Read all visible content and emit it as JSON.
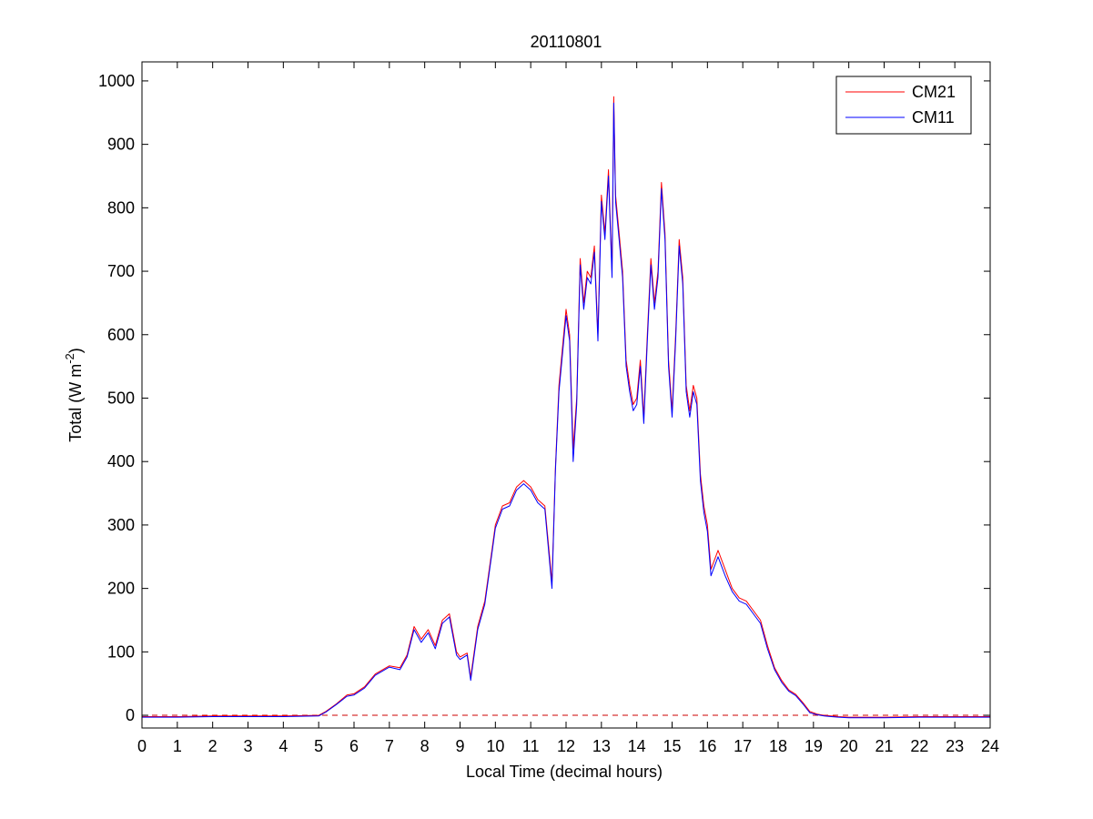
{
  "chart_data": {
    "type": "line",
    "title": "20110801",
    "xlabel": "Local Time (decimal hours)",
    "ylabel": "Total (W m",
    "ylabel_sup": "-2",
    "ylabel_close": ")",
    "xlim": [
      0,
      24
    ],
    "ylim": [
      -20,
      1030
    ],
    "xticks": [
      "0",
      "1",
      "2",
      "3",
      "4",
      "5",
      "6",
      "7",
      "8",
      "9",
      "10",
      "11",
      "12",
      "13",
      "14",
      "15",
      "16",
      "17",
      "18",
      "19",
      "20",
      "21",
      "22",
      "23",
      "24"
    ],
    "yticks": [
      "0",
      "100",
      "200",
      "300",
      "400",
      "500",
      "600",
      "700",
      "800",
      "900",
      "1000"
    ],
    "grid": false,
    "legend_position": "top-right",
    "reference_line": {
      "y": 0,
      "style": "dashed",
      "color": "#cc0000"
    },
    "series": [
      {
        "name": "CM21",
        "color": "#ff0000",
        "x": [
          0,
          1,
          2,
          3,
          4,
          5,
          5.2,
          5.5,
          5.8,
          6,
          6.3,
          6.6,
          7,
          7.3,
          7.5,
          7.7,
          7.9,
          8.1,
          8.3,
          8.5,
          8.7,
          8.9,
          9,
          9.2,
          9.3,
          9.5,
          9.7,
          9.9,
          10,
          10.2,
          10.4,
          10.6,
          10.8,
          11,
          11.2,
          11.4,
          11.6,
          11.7,
          11.8,
          12,
          12.1,
          12.2,
          12.3,
          12.4,
          12.5,
          12.6,
          12.7,
          12.8,
          12.9,
          13,
          13.1,
          13.2,
          13.3,
          13.35,
          13.4,
          13.5,
          13.6,
          13.7,
          13.8,
          13.9,
          14,
          14.1,
          14.2,
          14.3,
          14.4,
          14.5,
          14.6,
          14.7,
          14.8,
          14.9,
          15,
          15.1,
          15.2,
          15.3,
          15.4,
          15.5,
          15.6,
          15.7,
          15.8,
          15.9,
          16,
          16.1,
          16.3,
          16.5,
          16.7,
          16.9,
          17.1,
          17.3,
          17.5,
          17.7,
          17.9,
          18.1,
          18.3,
          18.5,
          18.7,
          18.9,
          19.1,
          19.3,
          19.5,
          19.7,
          20,
          20.5,
          21,
          22,
          23,
          24
        ],
        "y": [
          -2,
          -2,
          -1,
          -1,
          -1,
          0,
          6,
          18,
          32,
          34,
          45,
          65,
          78,
          75,
          95,
          140,
          120,
          135,
          110,
          150,
          160,
          100,
          92,
          98,
          60,
          140,
          180,
          260,
          300,
          330,
          335,
          360,
          370,
          360,
          340,
          330,
          210,
          390,
          520,
          640,
          600,
          420,
          500,
          720,
          650,
          700,
          690,
          740,
          600,
          820,
          760,
          860,
          700,
          975,
          820,
          760,
          700,
          560,
          520,
          490,
          500,
          560,
          470,
          600,
          720,
          650,
          700,
          840,
          760,
          560,
          480,
          600,
          750,
          690,
          520,
          480,
          520,
          500,
          380,
          330,
          300,
          230,
          260,
          230,
          200,
          185,
          180,
          165,
          150,
          110,
          75,
          55,
          40,
          33,
          20,
          6,
          2,
          0,
          -1,
          -2,
          -3,
          -3,
          -3,
          -2,
          -2,
          -2
        ]
      },
      {
        "name": "CM11",
        "color": "#0000ff",
        "x": [
          0,
          1,
          2,
          3,
          4,
          5,
          5.2,
          5.5,
          5.8,
          6,
          6.3,
          6.6,
          7,
          7.3,
          7.5,
          7.7,
          7.9,
          8.1,
          8.3,
          8.5,
          8.7,
          8.9,
          9,
          9.2,
          9.3,
          9.5,
          9.7,
          9.9,
          10,
          10.2,
          10.4,
          10.6,
          10.8,
          11,
          11.2,
          11.4,
          11.6,
          11.7,
          11.8,
          12,
          12.1,
          12.2,
          12.3,
          12.4,
          12.5,
          12.6,
          12.7,
          12.8,
          12.9,
          13,
          13.1,
          13.2,
          13.3,
          13.35,
          13.4,
          13.5,
          13.6,
          13.7,
          13.8,
          13.9,
          14,
          14.1,
          14.2,
          14.3,
          14.4,
          14.5,
          14.6,
          14.7,
          14.8,
          14.9,
          15,
          15.1,
          15.2,
          15.3,
          15.4,
          15.5,
          15.6,
          15.7,
          15.8,
          15.9,
          16,
          16.1,
          16.3,
          16.5,
          16.7,
          16.9,
          17.1,
          17.3,
          17.5,
          17.7,
          17.9,
          18.1,
          18.3,
          18.5,
          18.7,
          18.9,
          19.1,
          19.3,
          19.5,
          19.7,
          20,
          20.5,
          21,
          22,
          23,
          24
        ],
        "y": [
          -3,
          -3,
          -2,
          -2,
          -2,
          -1,
          5,
          17,
          30,
          32,
          43,
          63,
          76,
          72,
          92,
          135,
          115,
          130,
          105,
          145,
          155,
          95,
          88,
          95,
          55,
          135,
          175,
          255,
          295,
          325,
          330,
          355,
          365,
          355,
          335,
          325,
          200,
          385,
          510,
          630,
          590,
          400,
          490,
          710,
          640,
          690,
          680,
          730,
          590,
          810,
          750,
          850,
          690,
          965,
          810,
          750,
          690,
          550,
          510,
          480,
          490,
          550,
          460,
          590,
          710,
          640,
          690,
          830,
          750,
          550,
          470,
          590,
          740,
          680,
          510,
          470,
          510,
          490,
          370,
          320,
          290,
          220,
          250,
          220,
          195,
          180,
          175,
          160,
          145,
          105,
          72,
          52,
          38,
          31,
          18,
          4,
          1,
          -1,
          -2,
          -3,
          -4,
          -4,
          -4,
          -3,
          -3,
          -3
        ]
      }
    ]
  }
}
